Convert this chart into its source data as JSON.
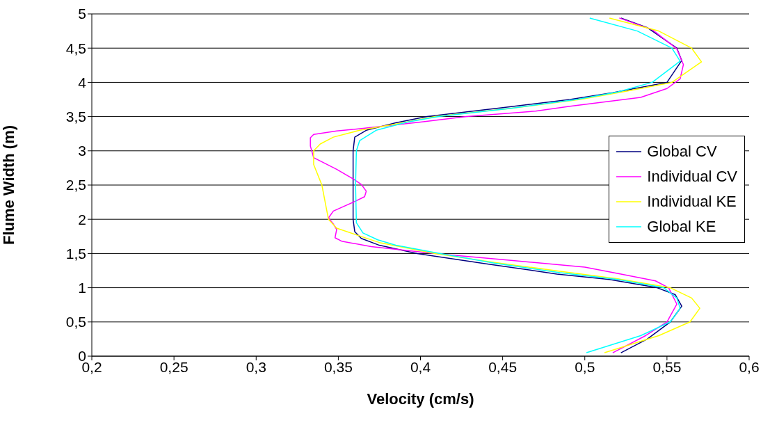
{
  "chart_data": {
    "type": "line",
    "xlabel": "Velocity (cm/s)",
    "ylabel": "Flume Width (m)",
    "xlim": [
      0.2,
      0.6
    ],
    "xticks": [
      {
        "value": 0.2,
        "label": "0,2"
      },
      {
        "value": 0.25,
        "label": "0,25"
      },
      {
        "value": 0.3,
        "label": "0,3"
      },
      {
        "value": 0.35,
        "label": "0,35"
      },
      {
        "value": 0.4,
        "label": "0,4"
      },
      {
        "value": 0.45,
        "label": "0,45"
      },
      {
        "value": 0.5,
        "label": "0,5"
      },
      {
        "value": 0.55,
        "label": "0,55"
      },
      {
        "value": 0.6,
        "label": "0,6"
      }
    ],
    "ylim": [
      0,
      5
    ],
    "yticks": [
      0,
      {
        "value": 0.5,
        "label": "0,5"
      },
      1,
      {
        "value": 1.5,
        "label": "1,5"
      },
      2,
      {
        "value": 2.5,
        "label": "2,5"
      },
      3,
      {
        "value": 3.5,
        "label": "3,5"
      },
      4,
      {
        "value": 4.5,
        "label": "4,5"
      },
      5
    ],
    "grid": "y",
    "legend": "right",
    "marker": "none",
    "line_style": "solid",
    "series": [
      {
        "name": "Global CV",
        "color": "#000080",
        "x": [
          0.522,
          0.538,
          0.552,
          0.559,
          0.555,
          0.544,
          0.515,
          0.483,
          0.44,
          0.398,
          0.375,
          0.364,
          0.36,
          0.359,
          0.359,
          0.359,
          0.36,
          0.367,
          0.385,
          0.404,
          0.45,
          0.491,
          0.517,
          0.55,
          0.559,
          0.556,
          0.538,
          0.522
        ],
        "values": [
          0.05,
          0.25,
          0.5,
          0.73,
          0.9,
          1.0,
          1.12,
          1.2,
          1.35,
          1.5,
          1.62,
          1.72,
          1.82,
          2.0,
          2.5,
          3.0,
          3.2,
          3.3,
          3.41,
          3.5,
          3.63,
          3.75,
          3.85,
          4.0,
          4.32,
          4.5,
          4.8,
          4.94
        ]
      },
      {
        "name": "Individual CV",
        "color": "#ff00ff",
        "x": [
          0.517,
          0.537,
          0.55,
          0.556,
          0.551,
          0.543,
          0.522,
          0.5,
          0.455,
          0.409,
          0.37,
          0.352,
          0.348,
          0.349,
          0.347,
          0.344,
          0.347,
          0.36,
          0.366,
          0.367,
          0.364,
          0.359,
          0.349,
          0.335,
          0.333,
          0.333,
          0.335,
          0.349,
          0.37,
          0.4,
          0.428,
          0.47,
          0.491,
          0.534,
          0.55,
          0.558,
          0.56,
          0.556,
          0.541,
          0.521
        ],
        "values": [
          0.05,
          0.3,
          0.5,
          0.76,
          1.0,
          1.1,
          1.2,
          1.3,
          1.4,
          1.5,
          1.6,
          1.68,
          1.73,
          1.85,
          1.93,
          2.02,
          2.12,
          2.26,
          2.33,
          2.41,
          2.51,
          2.59,
          2.73,
          2.9,
          3.07,
          3.19,
          3.24,
          3.29,
          3.34,
          3.42,
          3.5,
          3.58,
          3.65,
          3.78,
          3.91,
          4.05,
          4.26,
          4.49,
          4.77,
          4.94
        ]
      },
      {
        "name": "Individual KE",
        "color": "#ffff00",
        "x": [
          0.512,
          0.545,
          0.564,
          0.57,
          0.565,
          0.552,
          0.52,
          0.485,
          0.445,
          0.409,
          0.375,
          0.36,
          0.349,
          0.344,
          0.34,
          0.335,
          0.335,
          0.339,
          0.347,
          0.363,
          0.387,
          0.409,
          0.455,
          0.497,
          0.525,
          0.553,
          0.571,
          0.565,
          0.545,
          0.515
        ],
        "values": [
          0.05,
          0.3,
          0.5,
          0.7,
          0.85,
          1.0,
          1.13,
          1.24,
          1.37,
          1.5,
          1.66,
          1.78,
          1.87,
          2.0,
          2.5,
          2.8,
          3.0,
          3.1,
          3.2,
          3.3,
          3.4,
          3.5,
          3.62,
          3.75,
          3.87,
          4.0,
          4.3,
          4.5,
          4.75,
          4.94
        ]
      },
      {
        "name": "Global KE",
        "color": "#00ffff",
        "x": [
          0.501,
          0.534,
          0.552,
          0.558,
          0.556,
          0.548,
          0.52,
          0.485,
          0.445,
          0.412,
          0.385,
          0.374,
          0.365,
          0.361,
          0.3605,
          0.361,
          0.363,
          0.373,
          0.392,
          0.411,
          0.455,
          0.495,
          0.52,
          0.541,
          0.558,
          0.553,
          0.532,
          0.503
        ],
        "values": [
          0.05,
          0.3,
          0.5,
          0.7,
          0.85,
          1.0,
          1.12,
          1.22,
          1.36,
          1.5,
          1.62,
          1.7,
          1.8,
          1.95,
          2.5,
          3.0,
          3.15,
          3.3,
          3.42,
          3.5,
          3.62,
          3.75,
          3.86,
          4.0,
          4.31,
          4.5,
          4.75,
          4.94
        ]
      }
    ]
  }
}
